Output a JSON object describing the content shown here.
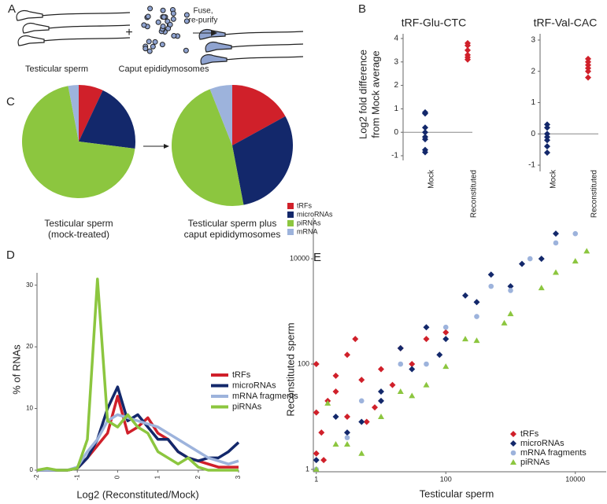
{
  "panels": [
    "A",
    "B",
    "C",
    "D",
    "E"
  ],
  "diagram": {
    "left_label": "Testicular sperm",
    "middle_label": "Caput epididymosomes",
    "arrow_label": [
      "Fuse,",
      "re-purify"
    ]
  },
  "pie_legend": {
    "names": [
      "tRFs",
      "microRNAs",
      "piRNAs",
      "mRNA"
    ],
    "colors": [
      "#d0202a",
      "#13286b",
      "#8cc63f",
      "#9db3dc"
    ]
  },
  "chart_data": [
    {
      "type": "strip",
      "title": "tRF-Glu-CTC",
      "ylabel": [
        "Log2 fold difference",
        "from Mock average"
      ],
      "categories": [
        "Mock",
        "Reconstituted"
      ],
      "series": [
        {
          "color": "#13286b",
          "values": [
            0.85,
            0.8,
            0.2,
            0,
            -0.2,
            -0.3,
            -0.75,
            -0.85
          ]
        },
        {
          "color": "#d0202a",
          "values": [
            3.8,
            3.7,
            3.5,
            3.3,
            3.2,
            3.1
          ]
        }
      ],
      "ylim": [
        -1.2,
        4.2
      ],
      "yticks": [
        -1,
        0,
        1,
        2,
        3,
        4
      ]
    },
    {
      "type": "strip",
      "title": "tRF-Val-CAC",
      "categories": [
        "Mock",
        "Reconstituted"
      ],
      "series": [
        {
          "color": "#13286b",
          "values": [
            0.3,
            0.2,
            0,
            -0.1,
            -0.2,
            -0.4,
            -0.6
          ]
        },
        {
          "color": "#d0202a",
          "values": [
            2.4,
            2.3,
            2.2,
            2.1,
            2.0,
            1.8
          ]
        }
      ],
      "ylim": [
        -1.2,
        3.2
      ],
      "yticks": [
        -1,
        0,
        1,
        2,
        3
      ]
    },
    {
      "type": "pie",
      "title": [
        "Testicular sperm",
        "(mock-treated)"
      ],
      "values": [
        7,
        20,
        70,
        3
      ]
    },
    {
      "type": "pie",
      "title": [
        "Testicular sperm plus",
        "caput epididymosomes"
      ],
      "values": [
        17,
        30,
        47,
        6
      ]
    },
    {
      "type": "line",
      "xlabel": "Log2 (Reconstituted/Mock)",
      "ylabel": "% of RNAs",
      "x": [
        -2,
        -1.75,
        -1.5,
        -1.25,
        -1,
        -0.75,
        -0.5,
        -0.25,
        0,
        0.25,
        0.5,
        0.75,
        1,
        1.25,
        1.5,
        1.75,
        2,
        2.25,
        2.5,
        2.75,
        3
      ],
      "series": [
        {
          "name": "tRFs",
          "color": "#d0202a",
          "values": [
            0,
            0,
            0,
            0,
            0.3,
            2,
            4,
            6,
            12,
            6,
            7,
            8.5,
            6,
            5,
            3,
            2,
            1.5,
            1,
            0.5,
            0.5,
            0.5
          ]
        },
        {
          "name": "microRNAs",
          "color": "#13286b",
          "values": [
            0,
            0,
            0,
            0,
            0.3,
            2,
            5,
            10,
            13.5,
            8,
            9,
            7,
            5,
            5,
            3,
            2,
            1.5,
            2,
            2,
            3,
            4.5
          ]
        },
        {
          "name": "mRNA fragments",
          "color": "#9db3dc",
          "values": [
            0,
            0,
            0,
            0,
            0.5,
            3,
            5,
            8,
            9,
            8.5,
            8,
            7.5,
            7,
            6,
            5,
            4,
            3,
            2,
            1.5,
            1,
            1.5
          ]
        },
        {
          "name": "piRNAs",
          "color": "#8cc63f",
          "values": [
            0,
            0.3,
            0,
            0,
            0.3,
            5,
            31,
            8,
            7,
            9,
            7,
            6,
            3,
            2,
            1,
            2,
            0.5,
            0,
            0,
            0,
            0
          ]
        }
      ],
      "xlim": [
        -2,
        3
      ],
      "xticks": [
        -2,
        -1,
        0,
        1,
        2,
        3
      ],
      "ylim": [
        0,
        32
      ],
      "yticks": [
        0,
        10,
        20,
        30
      ]
    },
    {
      "type": "scatter",
      "xlabel": "Testicular sperm",
      "ylabel": "Reconstituted sperm",
      "log_scale": true,
      "series": [
        {
          "name": "tRFs",
          "color": "#d0202a",
          "marker": "diamond",
          "x": [
            1,
            1.2,
            1.5,
            2,
            3,
            1,
            5,
            10,
            20,
            4,
            2,
            8,
            15,
            30,
            50,
            1.3,
            6,
            3,
            100,
            1
          ],
          "values": [
            2,
            5,
            20,
            60,
            10,
            100,
            50,
            80,
            200,
            300,
            30,
            15,
            40,
            100,
            300,
            1.5,
            8,
            150,
            400,
            12
          ]
        },
        {
          "name": "microRNAs",
          "color": "#13286b",
          "marker": "diamond",
          "x": [
            1,
            3,
            10,
            30,
            100,
            300,
            1000,
            3000,
            5000,
            2,
            20,
            50,
            200,
            500,
            1500,
            10,
            5,
            80
          ],
          "values": [
            1.5,
            5,
            30,
            80,
            300,
            1500,
            3000,
            10000,
            30000,
            10,
            200,
            500,
            2000,
            5000,
            8000,
            20,
            8,
            150
          ]
        },
        {
          "name": "mRNA fragments",
          "color": "#9db3dc",
          "marker": "circle",
          "x": [
            1,
            5,
            20,
            100,
            500,
            2000,
            5000,
            10000,
            50,
            300,
            3,
            1000
          ],
          "values": [
            1,
            20,
            100,
            500,
            3000,
            10000,
            20000,
            30000,
            100,
            800,
            4,
            2500
          ]
        },
        {
          "name": "piRNAs",
          "color": "#8cc63f",
          "marker": "triangle",
          "x": [
            1,
            3,
            10,
            30,
            100,
            300,
            1000,
            3000,
            10000,
            15000,
            2,
            20,
            50,
            200,
            800,
            5000,
            5,
            1.5
          ],
          "values": [
            1,
            3,
            10,
            25,
            90,
            280,
            900,
            2800,
            9000,
            14000,
            3,
            30,
            40,
            300,
            600,
            5500,
            2,
            18
          ]
        }
      ],
      "xlim": [
        0.9,
        30000
      ],
      "xticks": [
        1,
        100,
        10000
      ],
      "ylim": [
        0.9,
        60000
      ],
      "yticks": [
        1,
        100,
        10000
      ]
    }
  ]
}
